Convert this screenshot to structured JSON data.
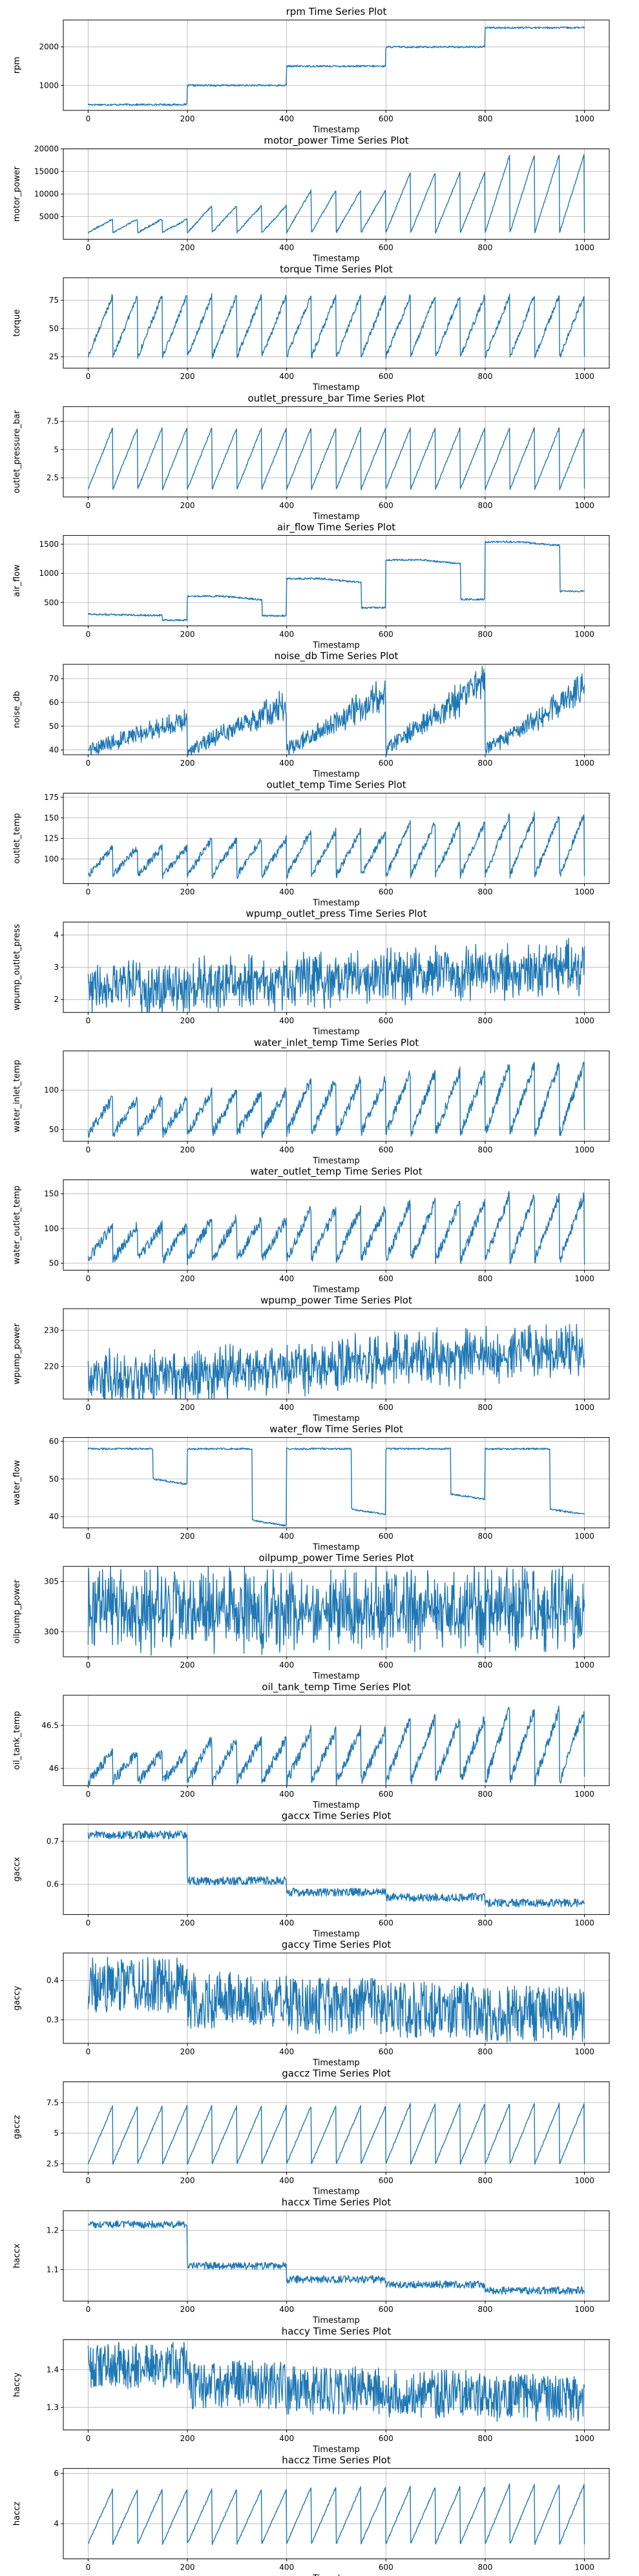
{
  "chart_data": [
    {
      "type": "line",
      "title": "rpm Time Series Plot",
      "xlabel": "Timestamp",
      "ylabel": "rpm",
      "xlim": [
        -50,
        1050
      ],
      "ylim": [
        350,
        2700
      ],
      "xticks": [
        0,
        200,
        400,
        600,
        800,
        1000
      ],
      "yticks": [
        1000,
        2000
      ],
      "pattern": "steps",
      "levels": [
        500,
        1000,
        1500,
        2000,
        2500
      ],
      "noise": 0.01
    },
    {
      "type": "line",
      "title": "motor_power Time Series Plot",
      "xlabel": "Timestamp",
      "ylabel": "motor_power",
      "xlim": [
        -50,
        1050
      ],
      "ylim": [
        0,
        20000
      ],
      "xticks": [
        0,
        200,
        400,
        600,
        800,
        1000
      ],
      "yticks": [
        5000,
        10000,
        15000,
        20000
      ],
      "pattern": "sawtooth",
      "base": 1500,
      "amp": [
        3000,
        6000,
        9500,
        13500,
        17500
      ],
      "n": 20,
      "noise": 0.01
    },
    {
      "type": "line",
      "title": "torque Time Series Plot",
      "xlabel": "Timestamp",
      "ylabel": "torque",
      "xlim": [
        -50,
        1050
      ],
      "ylim": [
        15,
        95
      ],
      "xticks": [
        0,
        200,
        400,
        600,
        800,
        1000
      ],
      "yticks": [
        25,
        50,
        75
      ],
      "pattern": "sawtooth",
      "base": 25,
      "amp": [
        55,
        55,
        55,
        55,
        55
      ],
      "n": 20,
      "noise": 0.03
    },
    {
      "type": "line",
      "title": "outlet_pressure_bar Time Series Plot",
      "xlabel": "Timestamp",
      "ylabel": "outlet_pressure_bar",
      "xlim": [
        -50,
        1050
      ],
      "ylim": [
        0.8,
        8.8
      ],
      "xticks": [
        0,
        200,
        400,
        600,
        800,
        1000
      ],
      "yticks": [
        2.5,
        5.0,
        7.5
      ],
      "pattern": "sawtooth",
      "base": 1.5,
      "amp": [
        5.5,
        5.5,
        5.5,
        5.5,
        5.5
      ],
      "n": 20,
      "noise": 0.01
    },
    {
      "type": "line",
      "title": "air_flow Time Series Plot",
      "xlabel": "Timestamp",
      "ylabel": "air_flow",
      "xlim": [
        -50,
        1050
      ],
      "ylim": [
        100,
        1650
      ],
      "xticks": [
        0,
        200,
        400,
        600,
        800,
        1000
      ],
      "yticks": [
        500,
        1000,
        1500
      ],
      "pattern": "steps_dip",
      "levels": [
        310,
        610,
        910,
        1230,
        1540
      ],
      "noise": 0.01
    },
    {
      "type": "line",
      "title": "noise_db Time Series Plot",
      "xlabel": "Timestamp",
      "ylabel": "noise_db",
      "xlim": [
        -50,
        1050
      ],
      "ylim": [
        38,
        76
      ],
      "xticks": [
        0,
        200,
        400,
        600,
        800,
        1000
      ],
      "yticks": [
        40,
        50,
        60,
        70
      ],
      "pattern": "rising_noise",
      "base": 40,
      "amp": [
        16,
        24,
        30,
        36,
        32
      ],
      "n": 5,
      "noise": 0.08
    },
    {
      "type": "line",
      "title": "outlet_temp Time Series Plot",
      "xlabel": "Timestamp",
      "ylabel": "outlet_temp",
      "xlim": [
        -50,
        1050
      ],
      "ylim": [
        70,
        180
      ],
      "xticks": [
        0,
        200,
        400,
        600,
        800,
        1000
      ],
      "yticks": [
        100,
        125,
        150,
        175
      ],
      "pattern": "sawtooth",
      "base": 80,
      "amp": [
        35,
        45,
        55,
        65,
        75
      ],
      "n": 20,
      "noise": 0.04
    },
    {
      "type": "line",
      "title": "wpump_outlet_press Time Series Plot",
      "xlabel": "Timestamp",
      "ylabel": "wpump_outlet_press",
      "xlim": [
        -50,
        1050
      ],
      "ylim": [
        1.6,
        4.4
      ],
      "xticks": [
        0,
        200,
        400,
        600,
        800,
        1000
      ],
      "yticks": [
        2,
        3,
        4
      ],
      "pattern": "noise",
      "base": 2.3,
      "trend": 0.7,
      "amp": 0.8,
      "noise": 0.2
    },
    {
      "type": "line",
      "title": "water_inlet_temp Time Series Plot",
      "xlabel": "Timestamp",
      "ylabel": "water_inlet_temp",
      "xlim": [
        -50,
        1050
      ],
      "ylim": [
        35,
        150
      ],
      "xticks": [
        0,
        200,
        400,
        600,
        800,
        1000
      ],
      "yticks": [
        50,
        100
      ],
      "pattern": "sawtooth",
      "base": 45,
      "amp": [
        45,
        55,
        70,
        80,
        90
      ],
      "n": 20,
      "noise": 0.06
    },
    {
      "type": "line",
      "title": "water_outlet_temp Time Series Plot",
      "xlabel": "Timestamp",
      "ylabel": "water_outlet_temp",
      "xlim": [
        -50,
        1050
      ],
      "ylim": [
        40,
        170
      ],
      "xticks": [
        0,
        200,
        400,
        600,
        800,
        1000
      ],
      "yticks": [
        50,
        100,
        150
      ],
      "pattern": "sawtooth",
      "base": 55,
      "amp": [
        50,
        60,
        75,
        85,
        95
      ],
      "n": 20,
      "noise": 0.06
    },
    {
      "type": "line",
      "title": "wpump_power Time Series Plot",
      "xlabel": "Timestamp",
      "ylabel": "wpump_power",
      "xlim": [
        -50,
        1050
      ],
      "ylim": [
        211,
        236
      ],
      "xticks": [
        0,
        200,
        400,
        600,
        800,
        1000
      ],
      "yticks": [
        220,
        230
      ],
      "pattern": "noise",
      "base": 216,
      "trend": 9,
      "amp": 8,
      "noise": 0.2
    },
    {
      "type": "line",
      "title": "water_flow Time Series Plot",
      "xlabel": "Timestamp",
      "ylabel": "water_flow",
      "xlim": [
        -50,
        1050
      ],
      "ylim": [
        37,
        61
      ],
      "xticks": [
        0,
        200,
        400,
        600,
        800,
        1000
      ],
      "yticks": [
        40,
        50,
        60
      ],
      "pattern": "flow_dips",
      "base": 58,
      "dips": [
        50,
        39,
        42,
        46,
        42
      ],
      "noise": 0.01
    },
    {
      "type": "line",
      "title": "oilpump_power Time Series Plot",
      "xlabel": "Timestamp",
      "ylabel": "oilpump_power",
      "xlim": [
        -50,
        1050
      ],
      "ylim": [
        297.5,
        306.5
      ],
      "xticks": [
        0,
        200,
        400,
        600,
        800,
        1000
      ],
      "yticks": [
        300,
        305
      ],
      "pattern": "noise",
      "base": 302.3,
      "trend": 0,
      "amp": 4.5,
      "noise": 0.3
    },
    {
      "type": "line",
      "title": "oil_tank_temp Time Series Plot",
      "xlabel": "Timestamp",
      "ylabel": "oil_tank_temp",
      "xlim": [
        -50,
        1050
      ],
      "ylim": [
        45.8,
        46.85
      ],
      "xticks": [
        0,
        200,
        400,
        600,
        800,
        1000
      ],
      "yticks": [
        46.0,
        46.5
      ],
      "pattern": "sawtooth",
      "base": 45.85,
      "amp": [
        0.35,
        0.5,
        0.6,
        0.75,
        0.85
      ],
      "n": 20,
      "noise": 0.06
    },
    {
      "type": "line",
      "title": "gaccx Time Series Plot",
      "xlabel": "Timestamp",
      "ylabel": "gaccx",
      "xlim": [
        -50,
        1050
      ],
      "ylim": [
        0.53,
        0.74
      ],
      "xticks": [
        0,
        200,
        400,
        600,
        800,
        1000
      ],
      "yticks": [
        0.6,
        0.7
      ],
      "pattern": "steps_noise",
      "levels": [
        0.715,
        0.608,
        0.582,
        0.57,
        0.557
      ],
      "amp": 0.012
    },
    {
      "type": "line",
      "title": "gaccy Time Series Plot",
      "xlabel": "Timestamp",
      "ylabel": "gaccy",
      "xlim": [
        -50,
        1050
      ],
      "ylim": [
        0.24,
        0.47
      ],
      "xticks": [
        0,
        200,
        400,
        600,
        800,
        1000
      ],
      "yticks": [
        0.3,
        0.4
      ],
      "pattern": "steps_noise",
      "levels": [
        0.39,
        0.35,
        0.335,
        0.325,
        0.315
      ],
      "amp": 0.09
    },
    {
      "type": "line",
      "title": "gaccz Time Series Plot",
      "xlabel": "Timestamp",
      "ylabel": "gaccz",
      "xlim": [
        -50,
        1050
      ],
      "ylim": [
        1.8,
        9.2
      ],
      "xticks": [
        0,
        200,
        400,
        600,
        800,
        1000
      ],
      "yticks": [
        2.5,
        5.0,
        7.5
      ],
      "pattern": "sawtooth",
      "base": 2.5,
      "amp": [
        4.8,
        4.8,
        4.8,
        5.0,
        5.0
      ],
      "n": 20,
      "noise": 0.01
    },
    {
      "type": "line",
      "title": "haccx Time Series Plot",
      "xlabel": "Timestamp",
      "ylabel": "haccx",
      "xlim": [
        -50,
        1050
      ],
      "ylim": [
        1.02,
        1.25
      ],
      "xticks": [
        0,
        200,
        400,
        600,
        800,
        1000
      ],
      "yticks": [
        1.1,
        1.2
      ],
      "pattern": "steps_noise",
      "levels": [
        1.215,
        1.11,
        1.075,
        1.062,
        1.047
      ],
      "amp": 0.012
    },
    {
      "type": "line",
      "title": "haccy Time Series Plot",
      "xlabel": "Timestamp",
      "ylabel": "haccy",
      "xlim": [
        -50,
        1050
      ],
      "ylim": [
        1.24,
        1.48
      ],
      "xticks": [
        0,
        200,
        400,
        600,
        800,
        1000
      ],
      "yticks": [
        1.3,
        1.4
      ],
      "pattern": "steps_noise",
      "levels": [
        1.41,
        1.36,
        1.345,
        1.335,
        1.325
      ],
      "amp": 0.08
    },
    {
      "type": "line",
      "title": "haccz Time Series Plot",
      "xlabel": "Timestamp",
      "ylabel": "haccz",
      "xlim": [
        -50,
        1050
      ],
      "ylim": [
        2.6,
        6.2
      ],
      "xticks": [
        0,
        200,
        400,
        600,
        800,
        1000
      ],
      "yticks": [
        4,
        6
      ],
      "pattern": "sawtooth",
      "base": 3.2,
      "amp": [
        2.2,
        2.2,
        2.3,
        2.3,
        2.4
      ],
      "n": 20,
      "noise": 0.01
    }
  ]
}
